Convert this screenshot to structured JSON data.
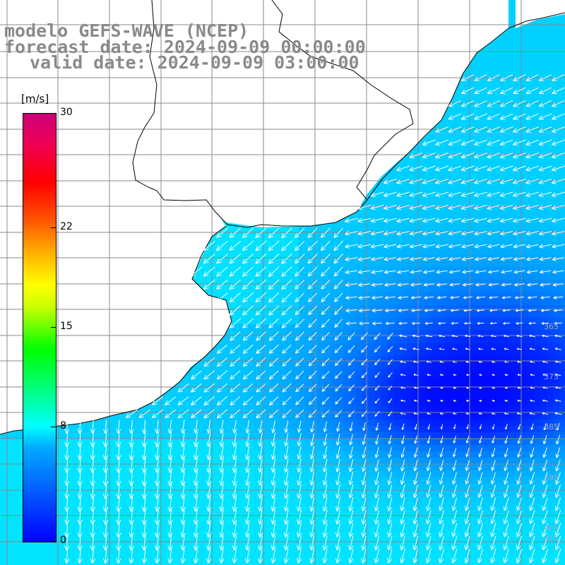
{
  "header": {
    "model_line": "modelo GEFS-WAVE (NCEP)",
    "forecast_line": "forecast date: 2024-09-09 00:00:00",
    "valid_line": "valid date: 2024-09-09 03:00:00"
  },
  "colorbar": {
    "units": "[m/s]",
    "ticks": [
      "30",
      "22",
      "15",
      "8",
      "0"
    ],
    "min": 0,
    "max": 30,
    "tick_values": [
      30,
      22,
      15,
      8,
      0
    ]
  },
  "map": {
    "field": "wind speed with direction arrows",
    "grid": true,
    "land_color": "#ffffff",
    "coastline_color": "#000000",
    "grid_color": "#888888",
    "edge_labels": [
      "365",
      "375",
      "385",
      "395",
      "405",
      "415"
    ]
  },
  "colors": {
    "title_text": "#8a8a8a",
    "arrow": "#ffffff"
  }
}
